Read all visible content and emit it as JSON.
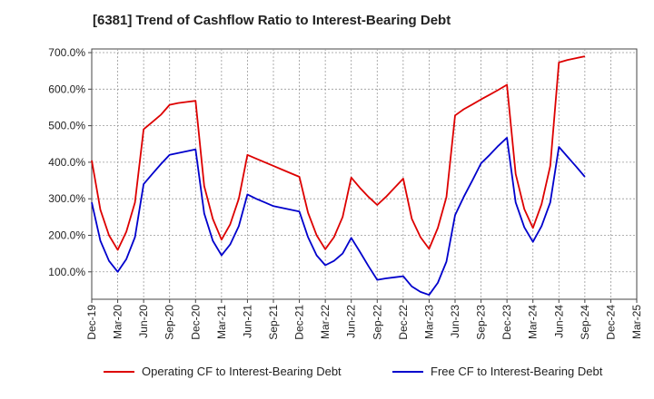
{
  "chart_data": {
    "type": "line",
    "title": "[6381]  Trend of Cashflow Ratio to Interest-Bearing Debt",
    "xlabel": "",
    "ylabel": "",
    "x": [
      "Dec-19",
      "Jan-20",
      "Feb-20",
      "Mar-20",
      "Apr-20",
      "May-20",
      "Jun-20",
      "Jul-20",
      "Aug-20",
      "Sep-20",
      "Oct-20",
      "Nov-20",
      "Dec-20",
      "Jan-21",
      "Feb-21",
      "Mar-21",
      "Apr-21",
      "May-21",
      "Jun-21",
      "Jul-21",
      "Aug-21",
      "Sep-21",
      "Oct-21",
      "Nov-21",
      "Dec-21",
      "Jan-22",
      "Feb-22",
      "Mar-22",
      "Apr-22",
      "May-22",
      "Jun-22",
      "Jul-22",
      "Aug-22",
      "Sep-22",
      "Oct-22",
      "Nov-22",
      "Dec-22",
      "Jan-23",
      "Feb-23",
      "Mar-23",
      "Apr-23",
      "May-23",
      "Jun-23",
      "Jul-23",
      "Aug-23",
      "Sep-23",
      "Oct-23",
      "Nov-23",
      "Dec-23",
      "Jan-24",
      "Feb-24",
      "Mar-24",
      "Apr-24",
      "May-24",
      "Jun-24",
      "Jul-24",
      "Aug-24",
      "Sep-24"
    ],
    "x_tick_labels": [
      "Dec-19",
      "Mar-20",
      "Jun-20",
      "Sep-20",
      "Dec-20",
      "Mar-21",
      "Jun-21",
      "Sep-21",
      "Dec-21",
      "Mar-22",
      "Jun-22",
      "Sep-22",
      "Dec-22",
      "Mar-23",
      "Jun-23",
      "Sep-23",
      "Dec-23",
      "Mar-24",
      "Jun-24",
      "Sep-24",
      "Dec-24",
      "Mar-25"
    ],
    "y_tick_labels": [
      "100.0%",
      "200.0%",
      "300.0%",
      "400.0%",
      "500.0%",
      "600.0%",
      "700.0%"
    ],
    "y_ticks": [
      100,
      200,
      300,
      400,
      500,
      600,
      700
    ],
    "ylim": [
      25,
      710
    ],
    "x_range": [
      "Dec-19",
      "Mar-25"
    ],
    "grid": true,
    "legend_position": "bottom",
    "series": [
      {
        "name": "Operating CF to Interest-Bearing Debt",
        "color": "#dd0000",
        "values": [
          405,
          270,
          200,
          160,
          210,
          290,
          490,
          510,
          530,
          557,
          562,
          565,
          568,
          335,
          245,
          188,
          230,
          300,
          420,
          410,
          400,
          390,
          380,
          370,
          360,
          262,
          200,
          162,
          195,
          250,
          358,
          330,
          305,
          283,
          305,
          330,
          355,
          245,
          195,
          163,
          220,
          305,
          528,
          545,
          558,
          572,
          585,
          598,
          612,
          368,
          272,
          220,
          285,
          390,
          673,
          680,
          685,
          690
        ]
      },
      {
        "name": "Free CF to Interest-Bearing Debt",
        "color": "#0000cc",
        "values": [
          290,
          185,
          130,
          100,
          135,
          195,
          340,
          368,
          395,
          420,
          425,
          430,
          435,
          260,
          185,
          145,
          175,
          225,
          312,
          300,
          290,
          280,
          275,
          270,
          265,
          195,
          145,
          118,
          130,
          150,
          193,
          155,
          115,
          78,
          82,
          85,
          88,
          60,
          45,
          37,
          70,
          128,
          255,
          305,
          350,
          397,
          420,
          445,
          467,
          290,
          222,
          182,
          225,
          290,
          442,
          415,
          388,
          360
        ]
      }
    ]
  }
}
